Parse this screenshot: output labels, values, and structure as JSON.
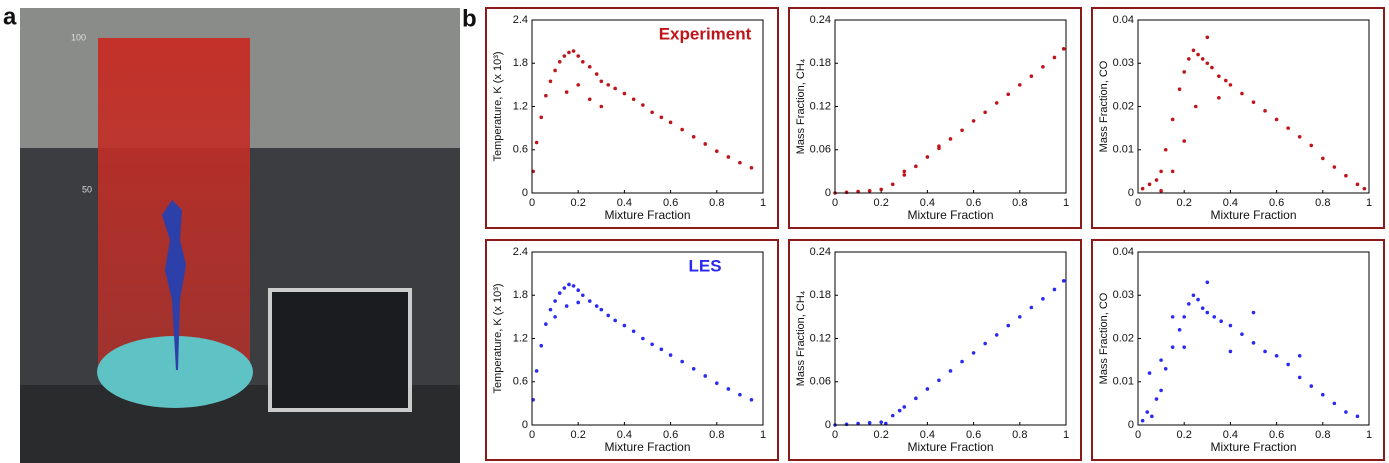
{
  "figure": {
    "panel_a_label": "a",
    "panel_b_label": "b",
    "photo_scale_labels": [
      "100",
      "50"
    ]
  },
  "chart_data": [
    {
      "type": "scatter",
      "annotation": "Experiment",
      "xlabel": "Mixture Fraction",
      "ylabel": "Temperature, K (x 10³)",
      "xlim": [
        0,
        1
      ],
      "xticks": [
        0,
        0.2,
        0.4,
        0.6,
        0.8,
        1
      ],
      "ylim": [
        0,
        2.4
      ],
      "yticks": [
        0,
        0.6,
        1.2,
        1.8,
        2.4
      ],
      "series": [
        {
          "color": "#c0141a",
          "x": [
            0.005,
            0.02,
            0.04,
            0.06,
            0.08,
            0.1,
            0.12,
            0.14,
            0.16,
            0.18,
            0.2,
            0.22,
            0.25,
            0.28,
            0.3,
            0.33,
            0.36,
            0.4,
            0.44,
            0.48,
            0.52,
            0.56,
            0.6,
            0.65,
            0.7,
            0.75,
            0.8,
            0.85,
            0.9,
            0.95,
            0.15,
            0.2,
            0.25,
            0.3
          ],
          "values": [
            0.3,
            0.7,
            1.05,
            1.35,
            1.55,
            1.7,
            1.82,
            1.9,
            1.95,
            1.97,
            1.9,
            1.82,
            1.75,
            1.65,
            1.55,
            1.5,
            1.45,
            1.38,
            1.3,
            1.22,
            1.12,
            1.05,
            0.98,
            0.88,
            0.78,
            0.68,
            0.58,
            0.5,
            0.42,
            0.35,
            1.4,
            1.5,
            1.3,
            1.2
          ]
        }
      ]
    },
    {
      "type": "scatter",
      "xlabel": "Mixture Fraction",
      "ylabel": "Mass Fraction, CH₄",
      "xlim": [
        0,
        1
      ],
      "xticks": [
        0,
        0.2,
        0.4,
        0.6,
        0.8,
        1
      ],
      "ylim": [
        0,
        0.24
      ],
      "yticks": [
        0,
        0.06,
        0.12,
        0.18,
        0.24
      ],
      "series": [
        {
          "color": "#c0141a",
          "x": [
            0,
            0.05,
            0.1,
            0.15,
            0.2,
            0.25,
            0.3,
            0.35,
            0.4,
            0.45,
            0.5,
            0.55,
            0.6,
            0.65,
            0.7,
            0.75,
            0.8,
            0.85,
            0.9,
            0.95,
            0.99,
            0.3,
            0.45
          ],
          "values": [
            0,
            0.001,
            0.002,
            0.003,
            0.005,
            0.012,
            0.025,
            0.037,
            0.05,
            0.062,
            0.075,
            0.087,
            0.1,
            0.112,
            0.125,
            0.137,
            0.15,
            0.162,
            0.175,
            0.188,
            0.2,
            0.03,
            0.065
          ]
        }
      ]
    },
    {
      "type": "scatter",
      "xlabel": "Mixture Fraction",
      "ylabel": "Mass Fraction, CO",
      "xlim": [
        0,
        1
      ],
      "xticks": [
        0,
        0.2,
        0.4,
        0.6,
        0.8,
        1
      ],
      "ylim": [
        0,
        0.04
      ],
      "yticks": [
        0,
        0.01,
        0.02,
        0.03,
        0.04
      ],
      "series": [
        {
          "color": "#c0141a",
          "x": [
            0.02,
            0.05,
            0.08,
            0.1,
            0.12,
            0.15,
            0.18,
            0.2,
            0.22,
            0.24,
            0.26,
            0.28,
            0.3,
            0.32,
            0.35,
            0.38,
            0.4,
            0.45,
            0.5,
            0.55,
            0.6,
            0.65,
            0.7,
            0.75,
            0.8,
            0.85,
            0.9,
            0.95,
            0.98,
            0.2,
            0.25,
            0.3,
            0.35,
            0.15,
            0.1
          ],
          "values": [
            0.001,
            0.002,
            0.003,
            0.005,
            0.01,
            0.017,
            0.024,
            0.028,
            0.031,
            0.033,
            0.032,
            0.031,
            0.03,
            0.029,
            0.027,
            0.026,
            0.025,
            0.023,
            0.021,
            0.019,
            0.017,
            0.015,
            0.013,
            0.011,
            0.008,
            0.006,
            0.004,
            0.002,
            0.001,
            0.012,
            0.02,
            0.036,
            0.022,
            0.005,
            0.0005
          ]
        }
      ]
    },
    {
      "type": "scatter",
      "annotation": "LES",
      "xlabel": "Mixture Fraction",
      "ylabel": "Temperature, K (x 10³)",
      "xlim": [
        0,
        1
      ],
      "xticks": [
        0,
        0.2,
        0.4,
        0.6,
        0.8,
        1
      ],
      "ylim": [
        0,
        2.4
      ],
      "yticks": [
        0,
        0.6,
        1.2,
        1.8,
        2.4
      ],
      "series": [
        {
          "color": "#2a2af2",
          "x": [
            0.005,
            0.02,
            0.04,
            0.06,
            0.08,
            0.1,
            0.12,
            0.14,
            0.16,
            0.18,
            0.2,
            0.22,
            0.25,
            0.28,
            0.3,
            0.33,
            0.36,
            0.4,
            0.44,
            0.48,
            0.52,
            0.56,
            0.6,
            0.65,
            0.7,
            0.75,
            0.8,
            0.85,
            0.9,
            0.95,
            0.1,
            0.15,
            0.2
          ],
          "values": [
            0.35,
            0.75,
            1.1,
            1.4,
            1.6,
            1.72,
            1.83,
            1.9,
            1.95,
            1.93,
            1.87,
            1.8,
            1.72,
            1.65,
            1.6,
            1.52,
            1.45,
            1.38,
            1.3,
            1.2,
            1.12,
            1.05,
            0.97,
            0.88,
            0.78,
            0.68,
            0.58,
            0.5,
            0.42,
            0.35,
            1.5,
            1.65,
            1.7
          ]
        }
      ]
    },
    {
      "type": "scatter",
      "xlabel": "Mixture Fraction",
      "ylabel": "Mass Fraction, CH₄",
      "xlim": [
        0,
        1
      ],
      "xticks": [
        0,
        0.2,
        0.4,
        0.6,
        0.8,
        1
      ],
      "ylim": [
        0,
        0.24
      ],
      "yticks": [
        0,
        0.06,
        0.12,
        0.18,
        0.24
      ],
      "series": [
        {
          "color": "#2a2af2",
          "x": [
            0,
            0.05,
            0.1,
            0.15,
            0.2,
            0.25,
            0.3,
            0.35,
            0.4,
            0.45,
            0.5,
            0.55,
            0.6,
            0.65,
            0.7,
            0.75,
            0.8,
            0.85,
            0.9,
            0.95,
            0.99,
            0.22,
            0.28
          ],
          "values": [
            0,
            0.001,
            0.002,
            0.003,
            0.004,
            0.013,
            0.025,
            0.037,
            0.05,
            0.062,
            0.075,
            0.088,
            0.1,
            0.113,
            0.125,
            0.138,
            0.15,
            0.163,
            0.175,
            0.188,
            0.2,
            0.002,
            0.02
          ]
        }
      ]
    },
    {
      "type": "scatter",
      "xlabel": "Mixture Fraction",
      "ylabel": "Mass Fraction, CO",
      "xlim": [
        0,
        1
      ],
      "xticks": [
        0,
        0.2,
        0.4,
        0.6,
        0.8,
        1
      ],
      "ylim": [
        0,
        0.04
      ],
      "yticks": [
        0,
        0.01,
        0.02,
        0.03,
        0.04
      ],
      "series": [
        {
          "color": "#2a2af2",
          "x": [
            0.02,
            0.04,
            0.06,
            0.08,
            0.1,
            0.12,
            0.15,
            0.18,
            0.2,
            0.22,
            0.24,
            0.26,
            0.28,
            0.3,
            0.33,
            0.36,
            0.4,
            0.45,
            0.5,
            0.55,
            0.6,
            0.65,
            0.7,
            0.75,
            0.8,
            0.85,
            0.9,
            0.95,
            0.05,
            0.1,
            0.15,
            0.2,
            0.3,
            0.4,
            0.5,
            0.7
          ],
          "values": [
            0.001,
            0.003,
            0.002,
            0.006,
            0.008,
            0.013,
            0.018,
            0.022,
            0.025,
            0.028,
            0.03,
            0.029,
            0.027,
            0.026,
            0.025,
            0.024,
            0.023,
            0.021,
            0.019,
            0.017,
            0.016,
            0.014,
            0.011,
            0.009,
            0.007,
            0.005,
            0.003,
            0.002,
            0.012,
            0.015,
            0.025,
            0.018,
            0.033,
            0.017,
            0.026,
            0.016
          ]
        }
      ]
    }
  ]
}
